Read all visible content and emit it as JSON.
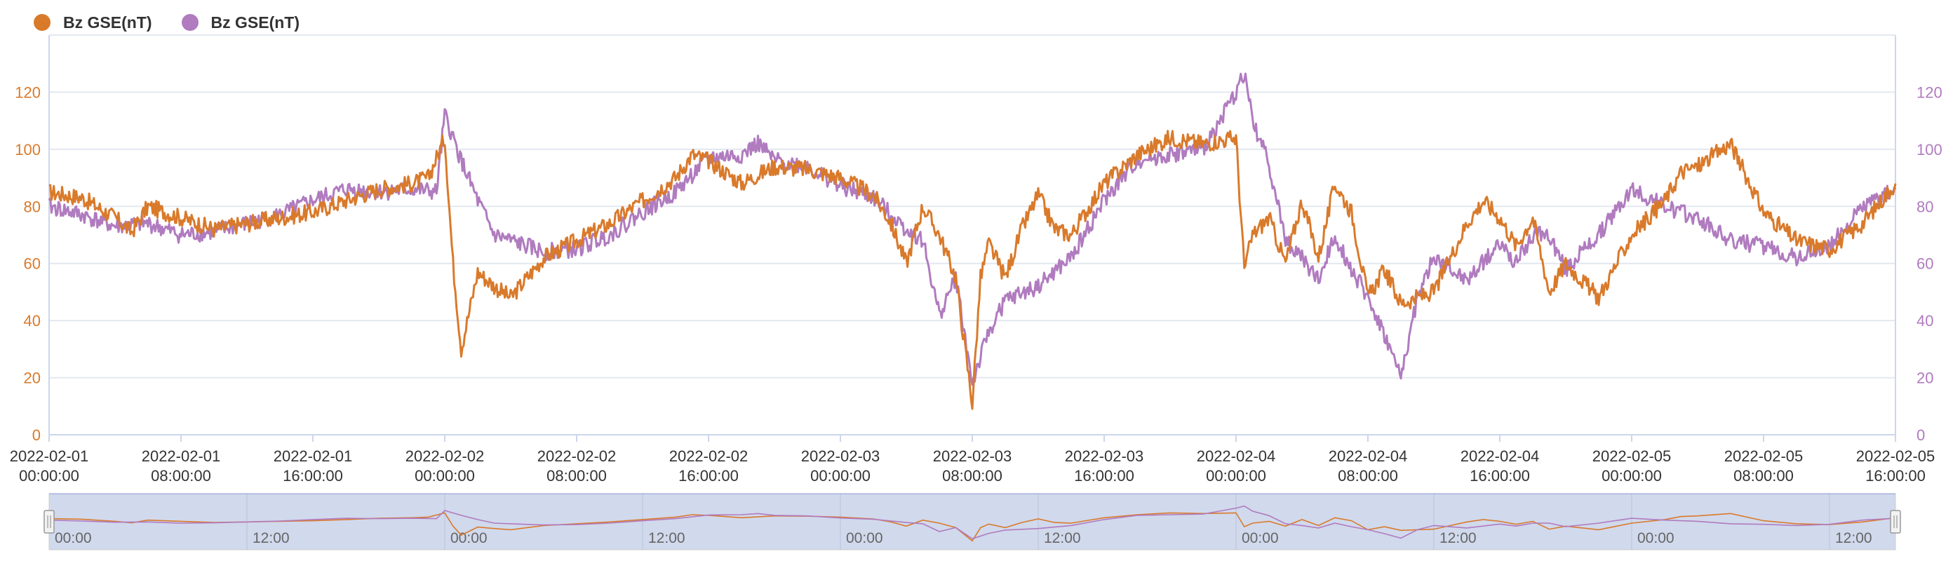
{
  "colors": {
    "series1": "#d97a2b",
    "series2": "#b07bbf",
    "axis": "#333333",
    "grid": "#e3e8f0",
    "slider_fill": "#d1d9ec",
    "slider_line": "#8a9bd1"
  },
  "legend": [
    {
      "name": "Bz GSE(nT)",
      "color": "#d97a2b",
      "icon": "circle"
    },
    {
      "name": "Bz GSE(nT)",
      "color": "#b07bbf",
      "icon": "circle"
    }
  ],
  "chart_data": {
    "type": "line",
    "title": "",
    "xlabel": "",
    "ylabel": "",
    "x_range": [
      "2022-02-01 00:00:00",
      "2022-02-05 16:00:00"
    ],
    "xlim_hours": [
      0,
      112
    ],
    "ylim": [
      0,
      140
    ],
    "y2lim": [
      0,
      140
    ],
    "grid": true,
    "legend_position": "top-left",
    "x_tick_labels": [
      "2022-02-01\n00:00:00",
      "2022-02-01\n08:00:00",
      "2022-02-01\n16:00:00",
      "2022-02-02\n00:00:00",
      "2022-02-02\n08:00:00",
      "2022-02-02\n16:00:00",
      "2022-02-03\n00:00:00",
      "2022-02-03\n08:00:00",
      "2022-02-03\n16:00:00",
      "2022-02-04\n00:00:00",
      "2022-02-04\n08:00:00",
      "2022-02-04\n16:00:00",
      "2022-02-05\n00:00:00",
      "2022-02-05\n08:00:00",
      "2022-02-05\n16:00:00"
    ],
    "y_ticks": [
      0,
      20,
      40,
      60,
      80,
      100,
      120
    ],
    "y2_ticks": [
      0,
      20,
      40,
      60,
      80,
      100,
      120
    ],
    "series": [
      {
        "name": "Bz GSE(nT)",
        "axis": "left",
        "x": [
          "2022-02-01 00:00",
          "2022-02-01 02:00",
          "2022-02-01 04:00",
          "2022-02-01 05:00",
          "2022-02-01 06:00",
          "2022-02-01 08:00",
          "2022-02-01 10:00",
          "2022-02-01 12:00",
          "2022-02-01 14:00",
          "2022-02-01 16:00",
          "2022-02-01 18:00",
          "2022-02-01 20:00",
          "2022-02-01 22:00",
          "2022-02-01 23:00",
          "2022-02-02 00:00",
          "2022-02-02 00:30",
          "2022-02-02 01:00",
          "2022-02-02 02:00",
          "2022-02-02 03:00",
          "2022-02-02 04:00",
          "2022-02-02 06:00",
          "2022-02-02 08:00",
          "2022-02-02 10:00",
          "2022-02-02 12:00",
          "2022-02-02 14:00",
          "2022-02-02 15:00",
          "2022-02-02 16:00",
          "2022-02-02 18:00",
          "2022-02-02 20:00",
          "2022-02-02 22:00",
          "2022-02-03 00:00",
          "2022-02-03 02:00",
          "2022-02-03 03:00",
          "2022-02-03 04:00",
          "2022-02-03 05:00",
          "2022-02-03 06:00",
          "2022-02-03 07:00",
          "2022-02-03 08:00",
          "2022-02-03 08:30",
          "2022-02-03 09:00",
          "2022-02-03 10:00",
          "2022-02-03 11:00",
          "2022-02-03 12:00",
          "2022-02-03 13:00",
          "2022-02-03 14:00",
          "2022-02-03 16:00",
          "2022-02-03 18:00",
          "2022-02-03 20:00",
          "2022-02-03 22:00",
          "2022-02-04 00:00",
          "2022-02-04 00:30",
          "2022-02-04 01:00",
          "2022-02-04 02:00",
          "2022-02-04 03:00",
          "2022-02-04 04:00",
          "2022-02-04 05:00",
          "2022-02-04 06:00",
          "2022-02-04 07:00",
          "2022-02-04 08:00",
          "2022-02-04 09:00",
          "2022-02-04 10:00",
          "2022-02-04 12:00",
          "2022-02-04 14:00",
          "2022-02-04 15:00",
          "2022-02-04 16:00",
          "2022-02-04 17:00",
          "2022-02-04 18:00",
          "2022-02-04 19:00",
          "2022-02-04 20:00",
          "2022-02-04 22:00",
          "2022-02-05 00:00",
          "2022-02-05 02:00",
          "2022-02-05 03:00",
          "2022-02-05 04:00",
          "2022-02-05 06:00",
          "2022-02-05 08:00",
          "2022-02-05 10:00",
          "2022-02-05 12:00",
          "2022-02-05 14:00",
          "2022-02-05 16:00"
        ],
        "values": [
          85,
          83,
          76,
          71,
          80,
          76,
          72,
          74,
          76,
          78,
          82,
          86,
          88,
          90,
          104,
          60,
          30,
          57,
          52,
          48,
          62,
          68,
          74,
          82,
          90,
          98,
          96,
          88,
          94,
          93,
          90,
          84,
          75,
          60,
          80,
          70,
          55,
          11,
          55,
          67,
          55,
          72,
          84,
          72,
          70,
          88,
          98,
          104,
          102,
          104,
          58,
          70,
          76,
          60,
          82,
          62,
          88,
          78,
          48,
          58,
          46,
          50,
          74,
          82,
          76,
          66,
          76,
          50,
          60,
          48,
          70,
          82,
          92,
          94,
          102,
          78,
          68,
          65,
          74,
          88
        ]
      },
      {
        "name": "Bz GSE(nT)",
        "axis": "right",
        "x": [
          "2022-02-01 00:00",
          "2022-02-01 02:00",
          "2022-02-01 04:00",
          "2022-02-01 06:00",
          "2022-02-01 08:00",
          "2022-02-01 10:00",
          "2022-02-01 12:00",
          "2022-02-01 14:00",
          "2022-02-01 16:00",
          "2022-02-01 18:00",
          "2022-02-01 20:00",
          "2022-02-01 22:00",
          "2022-02-01 23:30",
          "2022-02-02 00:00",
          "2022-02-02 01:00",
          "2022-02-02 02:00",
          "2022-02-02 03:00",
          "2022-02-02 04:00",
          "2022-02-02 06:00",
          "2022-02-02 08:00",
          "2022-02-02 10:00",
          "2022-02-02 12:00",
          "2022-02-02 14:00",
          "2022-02-02 16:00",
          "2022-02-02 18:00",
          "2022-02-02 19:00",
          "2022-02-02 20:00",
          "2022-02-02 22:00",
          "2022-02-03 00:00",
          "2022-02-03 02:00",
          "2022-02-03 04:00",
          "2022-02-03 05:00",
          "2022-02-03 06:00",
          "2022-02-03 07:00",
          "2022-02-03 08:00",
          "2022-02-03 09:00",
          "2022-02-03 10:00",
          "2022-02-03 12:00",
          "2022-02-03 14:00",
          "2022-02-03 16:00",
          "2022-02-03 18:00",
          "2022-02-03 20:00",
          "2022-02-03 22:00",
          "2022-02-04 00:00",
          "2022-02-04 00:30",
          "2022-02-04 01:00",
          "2022-02-04 02:00",
          "2022-02-04 03:00",
          "2022-02-04 04:00",
          "2022-02-04 05:00",
          "2022-02-04 06:00",
          "2022-02-04 07:00",
          "2022-02-04 08:00",
          "2022-02-04 09:00",
          "2022-02-04 10:00",
          "2022-02-04 11:00",
          "2022-02-04 12:00",
          "2022-02-04 14:00",
          "2022-02-04 16:00",
          "2022-02-04 17:00",
          "2022-02-04 18:00",
          "2022-02-04 19:00",
          "2022-02-04 20:00",
          "2022-02-04 22:00",
          "2022-02-05 00:00",
          "2022-02-05 02:00",
          "2022-02-05 04:00",
          "2022-02-05 06:00",
          "2022-02-05 08:00",
          "2022-02-05 10:00",
          "2022-02-05 12:00",
          "2022-02-05 14:00",
          "2022-02-05 16:00"
        ],
        "values": [
          80,
          77,
          73,
          74,
          70,
          71,
          74,
          77,
          82,
          86,
          85,
          86,
          85,
          112,
          96,
          82,
          70,
          68,
          64,
          65,
          70,
          78,
          85,
          97,
          98,
          102,
          96,
          94,
          87,
          83,
          72,
          68,
          42,
          55,
          18,
          36,
          47,
          52,
          62,
          82,
          96,
          98,
          100,
          120,
          127,
          110,
          95,
          68,
          62,
          54,
          70,
          58,
          48,
          35,
          20,
          48,
          62,
          54,
          67,
          60,
          70,
          70,
          58,
          70,
          86,
          80,
          76,
          68,
          66,
          62,
          66,
          80,
          86
        ]
      }
    ]
  },
  "slider": {
    "tick_labels": [
      "00:00",
      "12:00",
      "00:00",
      "12:00",
      "00:00",
      "12:00",
      "00:00",
      "12:00",
      "00:00",
      "12:00"
    ],
    "handle_left": "left-handle",
    "handle_right": "right-handle"
  }
}
